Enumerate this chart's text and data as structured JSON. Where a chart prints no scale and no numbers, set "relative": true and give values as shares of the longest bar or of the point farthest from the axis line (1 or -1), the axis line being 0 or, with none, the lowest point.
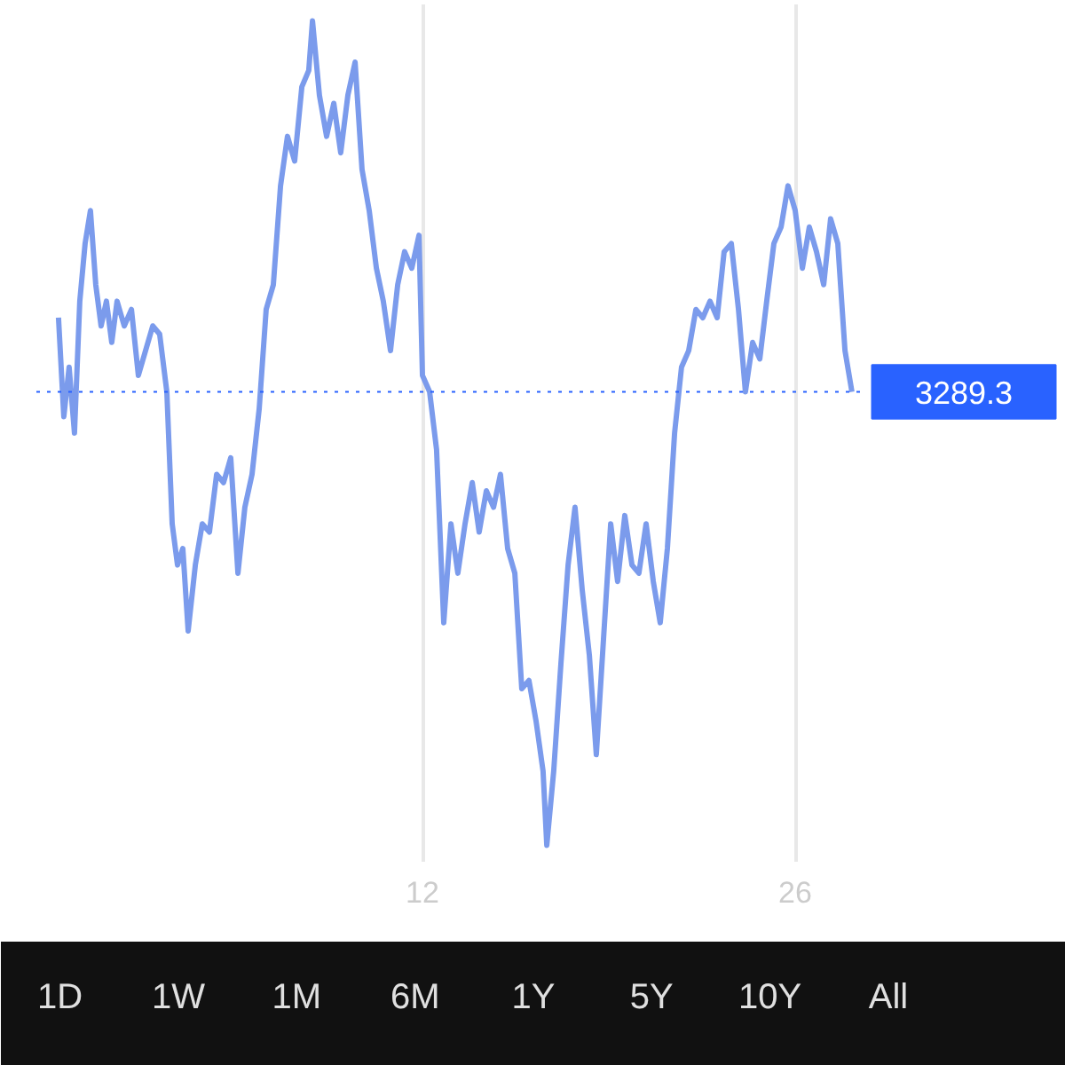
{
  "chart_data": {
    "type": "line",
    "relative": true,
    "xlim": [
      -2.5,
      28.5
    ],
    "xticks": [
      12,
      26
    ],
    "grid": "x",
    "marker": "none",
    "line_style": "solid",
    "tick_labels": "x",
    "x": [
      -1.67,
      -1.47,
      -1.27,
      -1.07,
      -0.87,
      -0.67,
      -0.47,
      -0.27,
      -0.07,
      0.13,
      0.33,
      0.53,
      0.8,
      1.07,
      1.33,
      1.6,
      1.87,
      2.13,
      2.4,
      2.6,
      2.8,
      3.0,
      3.2,
      3.47,
      3.73,
      4.0,
      4.27,
      4.53,
      4.8,
      5.07,
      5.33,
      5.6,
      5.87,
      6.13,
      6.4,
      6.67,
      6.93,
      7.2,
      7.47,
      7.73,
      7.87,
      8.13,
      8.4,
      8.67,
      8.93,
      9.2,
      9.47,
      9.73,
      10.0,
      10.27,
      10.53,
      10.8,
      11.07,
      11.33,
      11.6,
      11.87,
      12.0,
      12.27,
      12.53,
      12.8,
      13.07,
      13.33,
      13.6,
      13.87,
      14.13,
      14.4,
      14.67,
      14.93,
      15.2,
      15.47,
      15.73,
      16.0,
      16.27,
      16.53,
      16.67,
      16.93,
      17.2,
      17.47,
      17.73,
      18.0,
      18.27,
      18.53,
      18.8,
      19.07,
      19.33,
      19.6,
      19.87,
      20.13,
      20.4,
      20.67,
      20.93,
      21.2,
      21.47,
      21.73,
      22.0,
      22.27,
      22.53,
      22.8,
      23.07,
      23.33,
      23.6,
      23.87,
      24.13,
      24.4,
      24.67,
      24.93,
      25.2,
      25.47,
      25.73,
      26.0,
      26.27,
      26.53,
      26.8,
      27.07,
      27.33,
      27.6,
      27.87,
      28.13
    ],
    "series": [
      {
        "color": "#7b9bec",
        "values": [
          0.64,
          0.52,
          0.58,
          0.5,
          0.66,
          0.73,
          0.77,
          0.68,
          0.63,
          0.66,
          0.61,
          0.66,
          0.63,
          0.65,
          0.57,
          0.6,
          0.63,
          0.62,
          0.55,
          0.39,
          0.34,
          0.36,
          0.26,
          0.34,
          0.39,
          0.38,
          0.45,
          0.44,
          0.47,
          0.33,
          0.41,
          0.45,
          0.53,
          0.65,
          0.68,
          0.8,
          0.86,
          0.83,
          0.92,
          0.94,
          1,
          0.91,
          0.86,
          0.9,
          0.84,
          0.91,
          0.95,
          0.82,
          0.77,
          0.7,
          0.66,
          0.6,
          0.68,
          0.72,
          0.7,
          0.74,
          0.57,
          0.55,
          0.48,
          0.27,
          0.39,
          0.33,
          0.39,
          0.44,
          0.38,
          0.43,
          0.41,
          0.45,
          0.36,
          0.33,
          0.19,
          0.2,
          0.15,
          0.09,
          0,
          0.09,
          0.22,
          0.34,
          0.41,
          0.31,
          0.23,
          0.11,
          0.25,
          0.39,
          0.32,
          0.4,
          0.34,
          0.33,
          0.39,
          0.32,
          0.27,
          0.36,
          0.5,
          0.58,
          0.6,
          0.65,
          0.64,
          0.66,
          0.64,
          0.72,
          0.73,
          0.65,
          0.55,
          0.61,
          0.59,
          0.66,
          0.73,
          0.75,
          0.8,
          0.77,
          0.7,
          0.75,
          0.72,
          0.68,
          0.76,
          0.73,
          0.6,
          0.55
        ]
      }
    ],
    "ref_lines": [
      {
        "axis": "y",
        "value": 0.55,
        "color": "#2962ff",
        "line_style": "dotted"
      }
    ],
    "annotations": [
      "3289.3",
      "1D",
      "1W",
      "1M",
      "6M",
      "1Y",
      "5Y",
      "10Y",
      "All"
    ]
  }
}
